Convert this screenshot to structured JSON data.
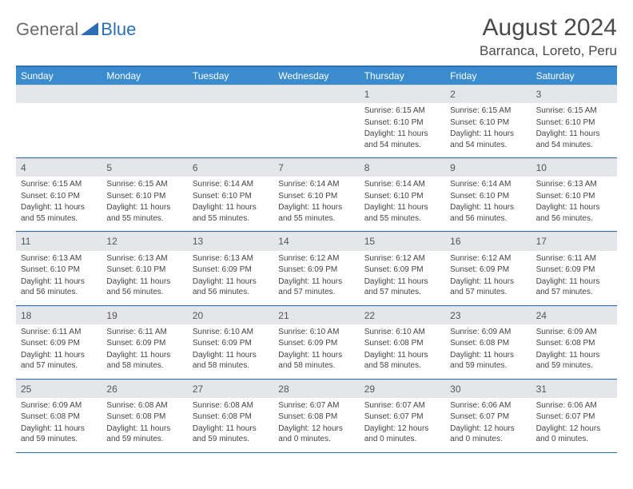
{
  "logo": {
    "text1": "General",
    "text2": "Blue",
    "tri_color": "#2a6fb5"
  },
  "title": "August 2024",
  "location": "Barranca, Loreto, Peru",
  "dow_bg": "#3b8bcf",
  "border_color": "#2a6fb5",
  "daynum_bg": "#e4e6e9",
  "days_of_week": [
    "Sunday",
    "Monday",
    "Tuesday",
    "Wednesday",
    "Thursday",
    "Friday",
    "Saturday"
  ],
  "weeks": [
    [
      null,
      null,
      null,
      null,
      {
        "n": "1",
        "sr": "6:15 AM",
        "ss": "6:10 PM",
        "dl": "11 hours and 54 minutes."
      },
      {
        "n": "2",
        "sr": "6:15 AM",
        "ss": "6:10 PM",
        "dl": "11 hours and 54 minutes."
      },
      {
        "n": "3",
        "sr": "6:15 AM",
        "ss": "6:10 PM",
        "dl": "11 hours and 54 minutes."
      }
    ],
    [
      {
        "n": "4",
        "sr": "6:15 AM",
        "ss": "6:10 PM",
        "dl": "11 hours and 55 minutes."
      },
      {
        "n": "5",
        "sr": "6:15 AM",
        "ss": "6:10 PM",
        "dl": "11 hours and 55 minutes."
      },
      {
        "n": "6",
        "sr": "6:14 AM",
        "ss": "6:10 PM",
        "dl": "11 hours and 55 minutes."
      },
      {
        "n": "7",
        "sr": "6:14 AM",
        "ss": "6:10 PM",
        "dl": "11 hours and 55 minutes."
      },
      {
        "n": "8",
        "sr": "6:14 AM",
        "ss": "6:10 PM",
        "dl": "11 hours and 55 minutes."
      },
      {
        "n": "9",
        "sr": "6:14 AM",
        "ss": "6:10 PM",
        "dl": "11 hours and 56 minutes."
      },
      {
        "n": "10",
        "sr": "6:13 AM",
        "ss": "6:10 PM",
        "dl": "11 hours and 56 minutes."
      }
    ],
    [
      {
        "n": "11",
        "sr": "6:13 AM",
        "ss": "6:10 PM",
        "dl": "11 hours and 56 minutes."
      },
      {
        "n": "12",
        "sr": "6:13 AM",
        "ss": "6:10 PM",
        "dl": "11 hours and 56 minutes."
      },
      {
        "n": "13",
        "sr": "6:13 AM",
        "ss": "6:09 PM",
        "dl": "11 hours and 56 minutes."
      },
      {
        "n": "14",
        "sr": "6:12 AM",
        "ss": "6:09 PM",
        "dl": "11 hours and 57 minutes."
      },
      {
        "n": "15",
        "sr": "6:12 AM",
        "ss": "6:09 PM",
        "dl": "11 hours and 57 minutes."
      },
      {
        "n": "16",
        "sr": "6:12 AM",
        "ss": "6:09 PM",
        "dl": "11 hours and 57 minutes."
      },
      {
        "n": "17",
        "sr": "6:11 AM",
        "ss": "6:09 PM",
        "dl": "11 hours and 57 minutes."
      }
    ],
    [
      {
        "n": "18",
        "sr": "6:11 AM",
        "ss": "6:09 PM",
        "dl": "11 hours and 57 minutes."
      },
      {
        "n": "19",
        "sr": "6:11 AM",
        "ss": "6:09 PM",
        "dl": "11 hours and 58 minutes."
      },
      {
        "n": "20",
        "sr": "6:10 AM",
        "ss": "6:09 PM",
        "dl": "11 hours and 58 minutes."
      },
      {
        "n": "21",
        "sr": "6:10 AM",
        "ss": "6:09 PM",
        "dl": "11 hours and 58 minutes."
      },
      {
        "n": "22",
        "sr": "6:10 AM",
        "ss": "6:08 PM",
        "dl": "11 hours and 58 minutes."
      },
      {
        "n": "23",
        "sr": "6:09 AM",
        "ss": "6:08 PM",
        "dl": "11 hours and 59 minutes."
      },
      {
        "n": "24",
        "sr": "6:09 AM",
        "ss": "6:08 PM",
        "dl": "11 hours and 59 minutes."
      }
    ],
    [
      {
        "n": "25",
        "sr": "6:09 AM",
        "ss": "6:08 PM",
        "dl": "11 hours and 59 minutes."
      },
      {
        "n": "26",
        "sr": "6:08 AM",
        "ss": "6:08 PM",
        "dl": "11 hours and 59 minutes."
      },
      {
        "n": "27",
        "sr": "6:08 AM",
        "ss": "6:08 PM",
        "dl": "11 hours and 59 minutes."
      },
      {
        "n": "28",
        "sr": "6:07 AM",
        "ss": "6:08 PM",
        "dl": "12 hours and 0 minutes."
      },
      {
        "n": "29",
        "sr": "6:07 AM",
        "ss": "6:07 PM",
        "dl": "12 hours and 0 minutes."
      },
      {
        "n": "30",
        "sr": "6:06 AM",
        "ss": "6:07 PM",
        "dl": "12 hours and 0 minutes."
      },
      {
        "n": "31",
        "sr": "6:06 AM",
        "ss": "6:07 PM",
        "dl": "12 hours and 0 minutes."
      }
    ]
  ],
  "labels": {
    "sunrise": "Sunrise:",
    "sunset": "Sunset:",
    "daylight": "Daylight:"
  }
}
